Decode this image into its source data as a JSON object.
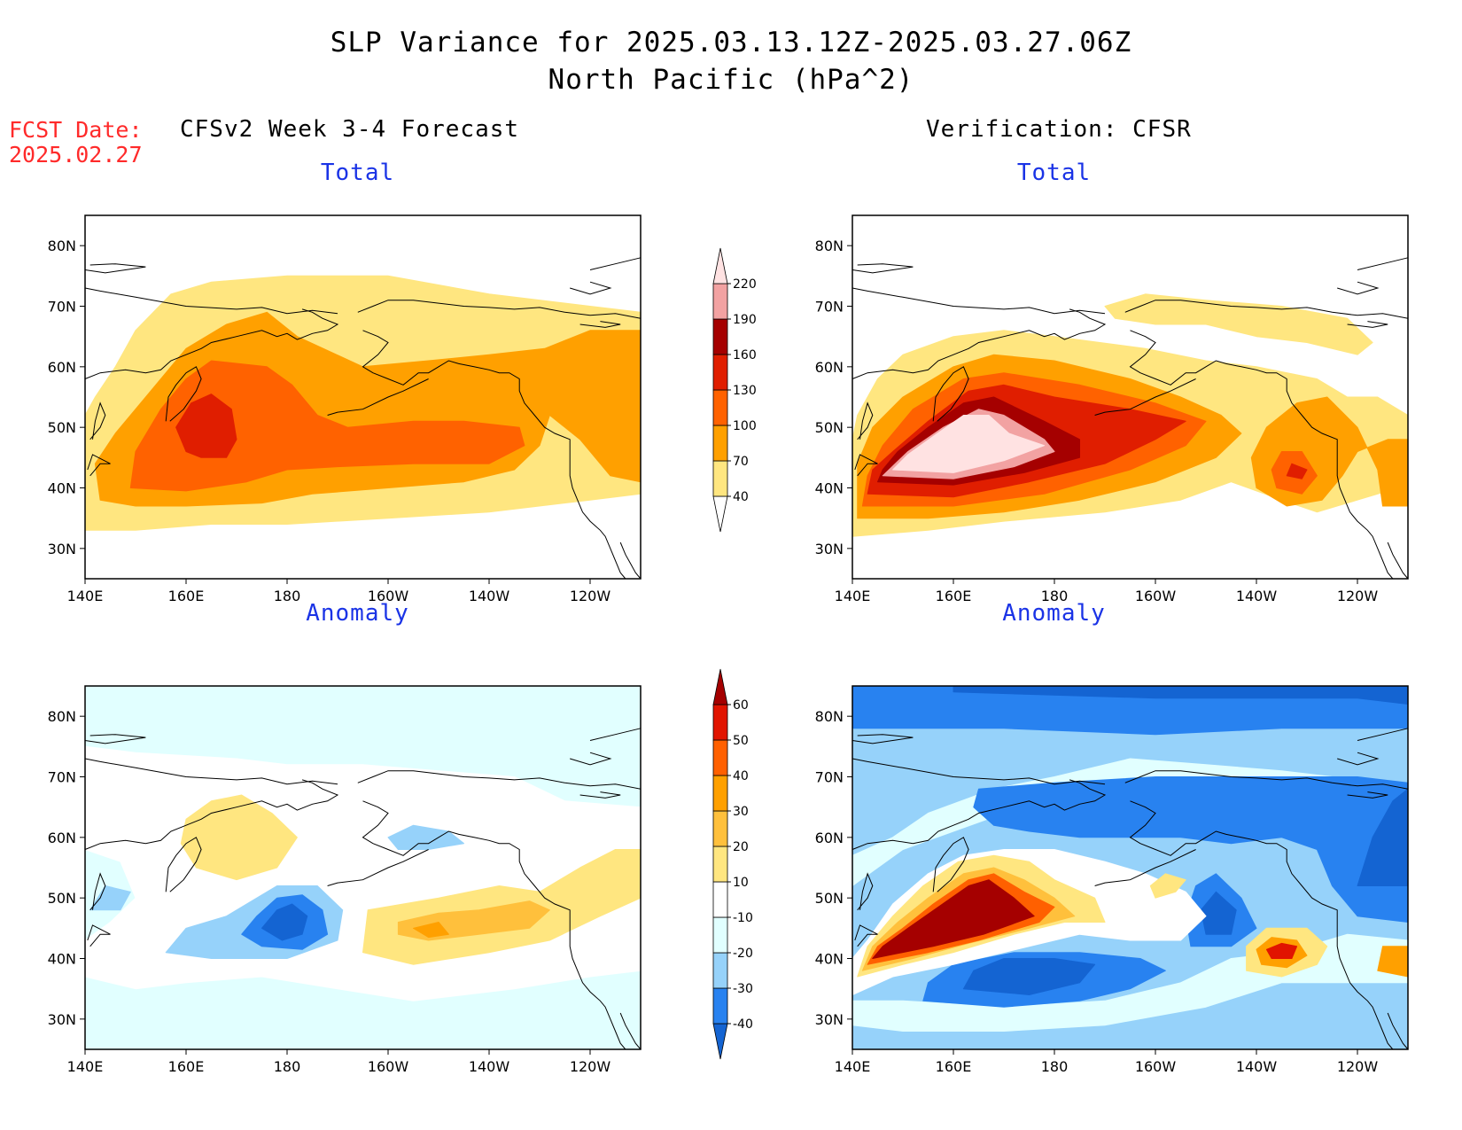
{
  "header": {
    "title_line1": "SLP Variance for 2025.03.13.12Z-2025.03.27.06Z",
    "title_line2": "North Pacific (hPa^2)",
    "fcst_label": "FCST Date:",
    "fcst_date": "2025.02.27",
    "left_column_title": "CFSv2 Week 3-4 Forecast",
    "right_column_title": "Verification: CFSR"
  },
  "axes": {
    "lon_ticks": [
      "140E",
      "160E",
      "180",
      "160W",
      "140W",
      "120W"
    ],
    "lat_ticks": [
      "80N",
      "70N",
      "60N",
      "50N",
      "40N",
      "30N"
    ],
    "lon_range_deg_east": [
      140,
      250
    ],
    "lat_range": [
      25,
      85
    ]
  },
  "panels": [
    {
      "id": "fcst-total",
      "title": "Total"
    },
    {
      "id": "obs-total",
      "title": "Total"
    },
    {
      "id": "fcst-anom",
      "title": "Anomaly"
    },
    {
      "id": "obs-anom",
      "title": "Anomaly"
    }
  ],
  "colorbars": {
    "total": {
      "labels": [
        "40",
        "70",
        "100",
        "130",
        "160",
        "190",
        "220"
      ],
      "colors": [
        "#ffffff",
        "#ffe680",
        "#ffa000",
        "#ff6200",
        "#e01e00",
        "#a50000",
        "#f2a2a2",
        "#ffe2e2"
      ]
    },
    "anomaly": {
      "labels": [
        "-40",
        "-30",
        "-20",
        "-10",
        "10",
        "20",
        "30",
        "40",
        "50",
        "60"
      ],
      "colors": [
        "#1464d2",
        "#2882f0",
        "#96d2fa",
        "#e1ffff",
        "#ffffff",
        "#ffe680",
        "#ffc03c",
        "#ffa000",
        "#ff6000",
        "#e11400",
        "#a50000"
      ]
    }
  },
  "colors": {
    "title_red": "#ff2a2a",
    "panel_title_blue": "#1a33e6"
  }
}
